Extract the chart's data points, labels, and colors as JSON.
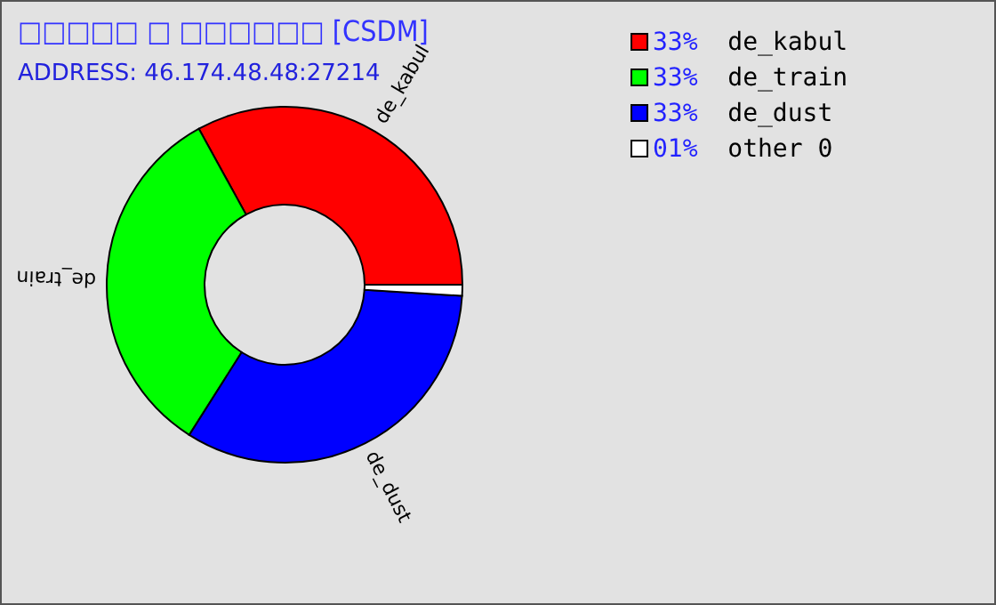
{
  "chart_data": {
    "type": "donut",
    "title": "□□□□□ □ □□□□□□ [CSDM]",
    "subtitle": "ADDRESS: 46.174.48.48:27214",
    "categories": [
      "de_kabul",
      "de_train",
      "de_dust",
      "other 0"
    ],
    "values": [
      33,
      33,
      33,
      1
    ],
    "colors": [
      "#ff0000",
      "#00ff00",
      "#0000ff",
      "#ffffff"
    ],
    "value_labels": [
      "33%",
      "33%",
      "33%",
      "01%"
    ],
    "legend": "top right"
  }
}
